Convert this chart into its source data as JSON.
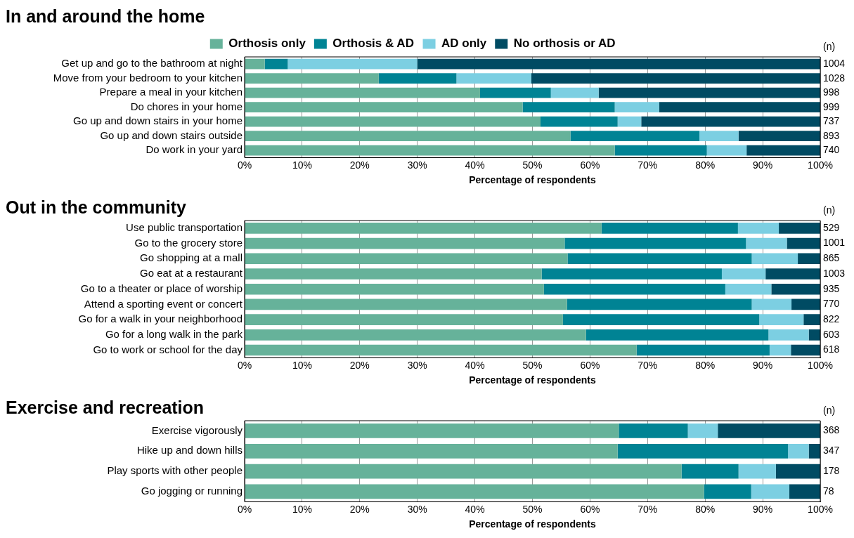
{
  "chart_data": [
    {
      "type": "bar",
      "title": "In and around the home",
      "orientation": "horizontal",
      "stacked": true,
      "legend": "top",
      "grid": "x",
      "xlabel": "Percentage of respondents",
      "categories": [
        "Get up and go to the bathroom at night",
        "Move from your bedroom to your kitchen",
        "Prepare a meal in your kitchen",
        "Do chores in your home",
        "Go up and down stairs in your home",
        "Go up and down stairs outside",
        "Do work in your yard"
      ],
      "series": [
        {
          "name": "Orthosis only",
          "color": "#66b29a",
          "values": [
            3.5,
            23.3,
            40.9,
            48.3,
            51.4,
            56.6,
            64.3
          ]
        },
        {
          "name": "Orthosis & AD",
          "color": "#008394",
          "values": [
            4,
            13.5,
            12.3,
            16,
            13.4,
            22.4,
            16
          ]
        },
        {
          "name": "AD only",
          "color": "#7ccfe2",
          "values": [
            22.5,
            13,
            8.3,
            7.7,
            4.1,
            6.8,
            6.9
          ]
        },
        {
          "name": "No orthosis or AD",
          "color": "#004b63",
          "values": [
            70,
            50.2,
            38.5,
            28,
            31.1,
            14.2,
            12.8
          ]
        }
      ],
      "xlim": [
        0,
        100
      ],
      "xticks": [
        {
          "value": 0,
          "label": "0%"
        },
        {
          "value": 10,
          "label": "10%"
        },
        {
          "value": 20,
          "label": "20%"
        },
        {
          "value": 30,
          "label": "30%"
        },
        {
          "value": 40,
          "label": "40%"
        },
        {
          "value": 50,
          "label": "50%"
        },
        {
          "value": 60,
          "label": "60%"
        },
        {
          "value": 70,
          "label": "70%"
        },
        {
          "value": 80,
          "label": "80%"
        },
        {
          "value": 90,
          "label": "90%"
        },
        {
          "value": 100,
          "label": "100%"
        }
      ],
      "annotations": [
        "(n)",
        "1004",
        "1028",
        "998",
        "999",
        "737",
        "893",
        "740"
      ]
    },
    {
      "type": "bar",
      "title": "Out in the community",
      "orientation": "horizontal",
      "stacked": true,
      "grid": "x",
      "xlabel": "Percentage of respondents",
      "categories": [
        "Use public transportation",
        "Go to the grocery store",
        "Go shopping at a mall",
        "Go eat at a restaurant",
        "Go to a theater or place of worship",
        "Attend a sporting event or concert",
        "Go for a walk in your neighborhood",
        "Go for a long walk in the park",
        "Go to work or school for the day"
      ],
      "series": [
        {
          "color": "#66b29a",
          "values": [
            62,
            55.6,
            56.1,
            51.6,
            52,
            56,
            55.3,
            59.3,
            68.1
          ]
        },
        {
          "color": "#008394",
          "values": [
            23.7,
            31.5,
            32,
            31.3,
            31.5,
            32.1,
            34.1,
            31.7,
            23.1
          ]
        },
        {
          "color": "#7ccfe2",
          "values": [
            7.1,
            7.1,
            8,
            7.6,
            8,
            6.9,
            7.7,
            7,
            3.7
          ]
        },
        {
          "color": "#004b63",
          "values": [
            7.2,
            5.8,
            3.9,
            9.5,
            8.5,
            5,
            2.9,
            2,
            5.1
          ]
        }
      ],
      "xlim": [
        0,
        100
      ],
      "xticks": [
        {
          "value": 0,
          "label": "0%"
        },
        {
          "value": 10,
          "label": "10%"
        },
        {
          "value": 20,
          "label": "20%"
        },
        {
          "value": 30,
          "label": "30%"
        },
        {
          "value": 40,
          "label": "40%"
        },
        {
          "value": 50,
          "label": "50%"
        },
        {
          "value": 60,
          "label": "60%"
        },
        {
          "value": 70,
          "label": "70%"
        },
        {
          "value": 80,
          "label": "80%"
        },
        {
          "value": 90,
          "label": "90%"
        },
        {
          "value": 100,
          "label": "100%"
        }
      ],
      "annotations": [
        "(n)",
        "529",
        "1001",
        "865",
        "1003",
        "935",
        "770",
        "822",
        "603",
        "618"
      ]
    },
    {
      "type": "bar",
      "title": "Exercise and recreation",
      "orientation": "horizontal",
      "stacked": true,
      "grid": "x",
      "xlabel": "Percentage of respondents",
      "categories": [
        "Exercise vigorously",
        "Hike up and down hills",
        "Play sports with other people",
        "Go jogging or running"
      ],
      "series": [
        {
          "color": "#66b29a",
          "values": [
            65,
            64.8,
            75.9,
            79.8
          ]
        },
        {
          "color": "#008394",
          "values": [
            12,
            29.6,
            9.9,
            8.2
          ]
        },
        {
          "color": "#7ccfe2",
          "values": [
            5.2,
            3.6,
            6.5,
            6.6
          ]
        },
        {
          "color": "#004b63",
          "values": [
            17.8,
            2,
            7.7,
            5.4
          ]
        }
      ],
      "xlim": [
        0,
        100
      ],
      "xticks": [
        {
          "value": 0,
          "label": "0%"
        },
        {
          "value": 10,
          "label": "10%"
        },
        {
          "value": 20,
          "label": "20%"
        },
        {
          "value": 30,
          "label": "30%"
        },
        {
          "value": 40,
          "label": "40%"
        },
        {
          "value": 50,
          "label": "50%"
        },
        {
          "value": 60,
          "label": "60%"
        },
        {
          "value": 70,
          "label": "70%"
        },
        {
          "value": 80,
          "label": "80%"
        },
        {
          "value": 90,
          "label": "90%"
        },
        {
          "value": 100,
          "label": "100%"
        }
      ],
      "annotations": [
        "(n)",
        "368",
        "347",
        "178",
        "78"
      ]
    }
  ]
}
